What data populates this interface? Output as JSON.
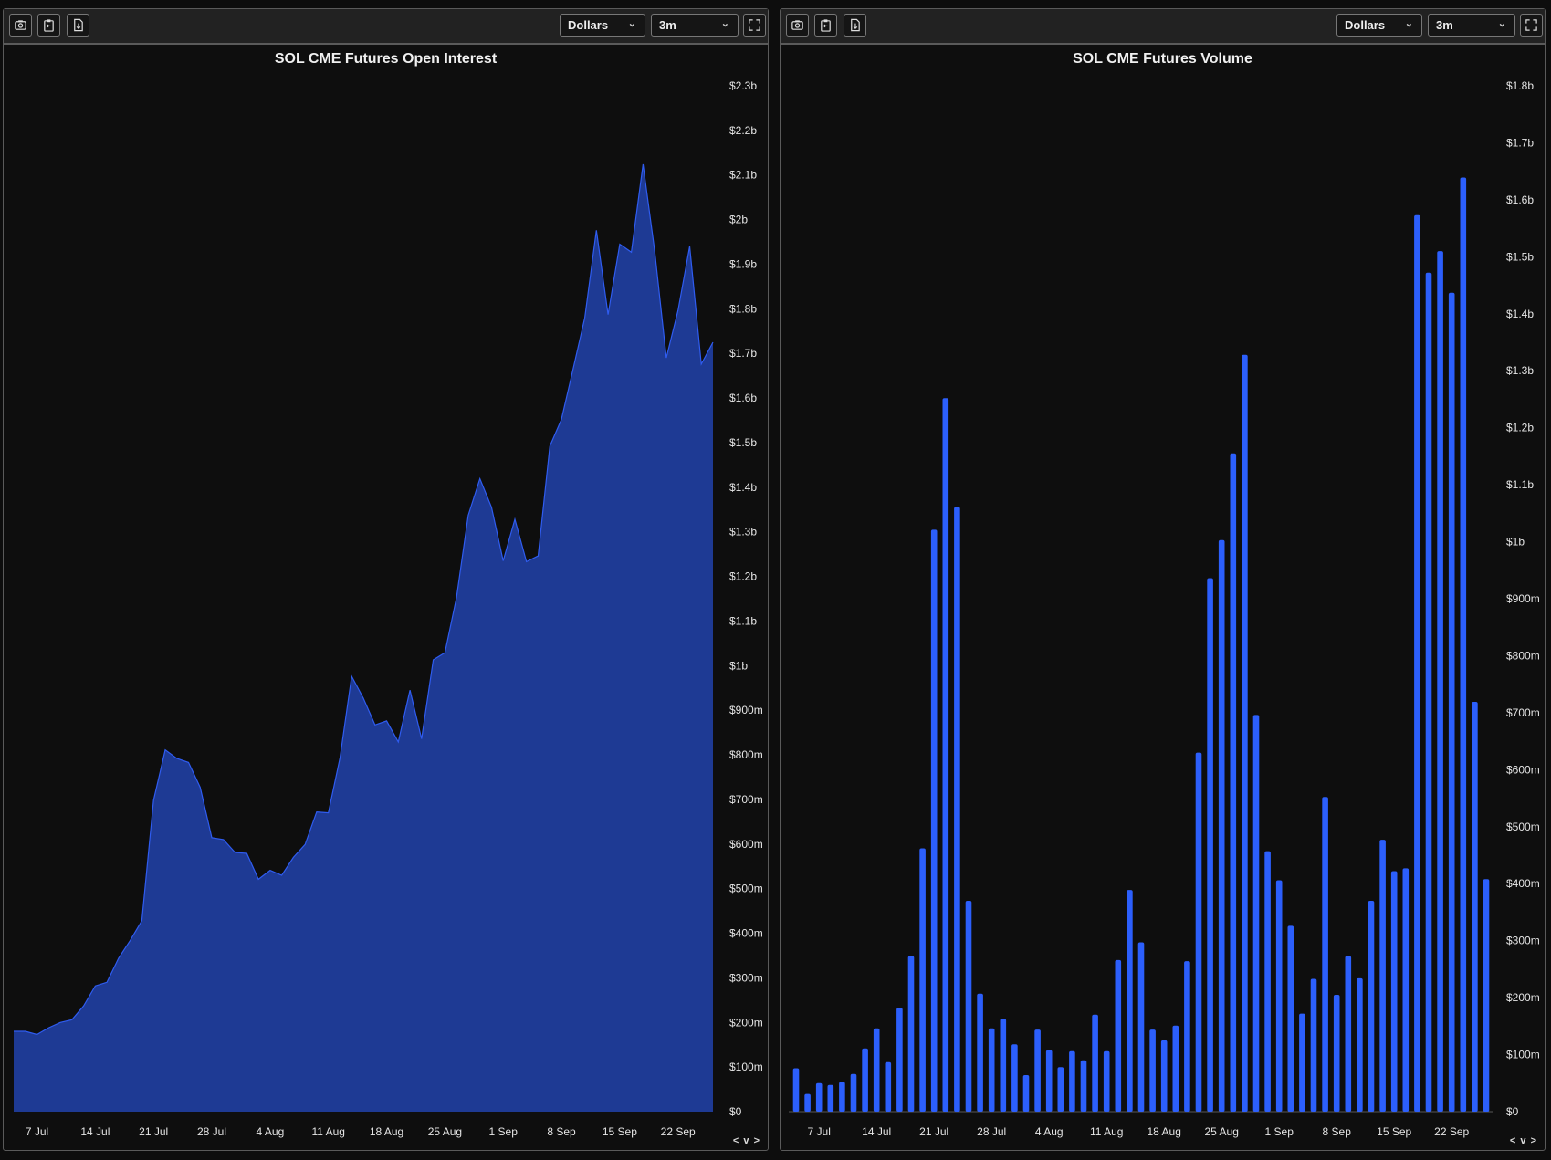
{
  "panels": [
    {
      "toolbar": {
        "icons": [
          "camera-icon",
          "clipboard-icon",
          "download-icon",
          "fullscreen-icon"
        ],
        "unit_select": "Dollars",
        "range_select": "3m"
      },
      "nav_label": "< v >"
    },
    {
      "toolbar": {
        "icons": [
          "camera-icon",
          "clipboard-icon",
          "download-icon",
          "fullscreen-icon"
        ],
        "unit_select": "Dollars",
        "range_select": "3m"
      },
      "nav_label": "< v >"
    }
  ],
  "chart_data": [
    {
      "type": "area",
      "title": "SOL CME Futures Open Interest",
      "xlabel": "",
      "ylabel": "",
      "unit": "USD millions",
      "ylim": [
        0,
        2300
      ],
      "y_ticks": [
        0,
        100,
        200,
        300,
        400,
        500,
        600,
        700,
        800,
        900,
        1000,
        1100,
        1200,
        1300,
        1400,
        1500,
        1600,
        1700,
        1800,
        1900,
        2000,
        2100,
        2200,
        2300
      ],
      "y_tick_labels": [
        "$0",
        "$100m",
        "$200m",
        "$300m",
        "$400m",
        "$500m",
        "$600m",
        "$700m",
        "$800m",
        "$900m",
        "$1b",
        "$1.1b",
        "$1.2b",
        "$1.3b",
        "$1.4b",
        "$1.5b",
        "$1.6b",
        "$1.7b",
        "$1.8b",
        "$1.9b",
        "$2b",
        "$2.1b",
        "$2.2b",
        "$2.3b"
      ],
      "x_ticks": [
        {
          "label": "7 Jul",
          "at": 2
        },
        {
          "label": "14 Jul",
          "at": 7
        },
        {
          "label": "21 Jul",
          "at": 12
        },
        {
          "label": "28 Jul",
          "at": 17
        },
        {
          "label": "4 Aug",
          "at": 22
        },
        {
          "label": "11 Aug",
          "at": 27
        },
        {
          "label": "18 Aug",
          "at": 32
        },
        {
          "label": "25 Aug",
          "at": 37
        },
        {
          "label": "1 Sep",
          "at": 42
        },
        {
          "label": "8 Sep",
          "at": 47
        },
        {
          "label": "15 Sep",
          "at": 52
        },
        {
          "label": "22 Sep",
          "at": 57
        }
      ],
      "values": [
        180,
        180,
        173,
        188,
        200,
        206,
        237,
        282,
        290,
        344,
        384,
        428,
        698,
        811,
        792,
        783,
        727,
        614,
        610,
        581,
        579,
        521,
        541,
        530,
        570,
        599,
        672,
        670,
        794,
        976,
        927,
        867,
        876,
        829,
        945,
        836,
        1013,
        1029,
        1153,
        1337,
        1419,
        1355,
        1235,
        1328,
        1233,
        1246,
        1492,
        1552,
        1665,
        1780,
        1976,
        1787,
        1945,
        1927,
        2124,
        1929,
        1690,
        1796,
        1940,
        1676,
        1725
      ],
      "colors": {
        "fill": "#1e3a94",
        "line": "#2f5cf0"
      },
      "grid": false
    },
    {
      "type": "bar",
      "title": "SOL CME Futures Volume",
      "xlabel": "",
      "ylabel": "",
      "unit": "USD millions",
      "ylim": [
        0,
        1800
      ],
      "y_ticks": [
        0,
        100,
        200,
        300,
        400,
        500,
        600,
        700,
        800,
        900,
        1000,
        1100,
        1200,
        1300,
        1400,
        1500,
        1600,
        1700,
        1800
      ],
      "y_tick_labels": [
        "$0",
        "$100m",
        "$200m",
        "$300m",
        "$400m",
        "$500m",
        "$600m",
        "$700m",
        "$800m",
        "$900m",
        "$1b",
        "$1.1b",
        "$1.2b",
        "$1.3b",
        "$1.4b",
        "$1.5b",
        "$1.6b",
        "$1.7b",
        "$1.8b"
      ],
      "x_ticks": [
        {
          "label": "7 Jul",
          "at": 2
        },
        {
          "label": "14 Jul",
          "at": 7
        },
        {
          "label": "21 Jul",
          "at": 12
        },
        {
          "label": "28 Jul",
          "at": 17
        },
        {
          "label": "4 Aug",
          "at": 22
        },
        {
          "label": "11 Aug",
          "at": 27
        },
        {
          "label": "18 Aug",
          "at": 32
        },
        {
          "label": "25 Aug",
          "at": 37
        },
        {
          "label": "1 Sep",
          "at": 42
        },
        {
          "label": "8 Sep",
          "at": 47
        },
        {
          "label": "15 Sep",
          "at": 52
        },
        {
          "label": "22 Sep",
          "at": 57
        }
      ],
      "values": [
        76,
        31,
        50,
        47,
        52,
        66,
        111,
        146,
        87,
        182,
        273,
        462,
        1021,
        1252,
        1061,
        370,
        207,
        146,
        163,
        118,
        64,
        144,
        108,
        78,
        106,
        90,
        170,
        106,
        266,
        389,
        297,
        144,
        125,
        151,
        264,
        630,
        936,
        1003,
        1155,
        1328,
        696,
        457,
        406,
        326,
        172,
        233,
        552,
        205,
        273,
        234,
        370,
        477,
        422,
        427,
        1573,
        1472,
        1510,
        1437,
        1639,
        719,
        408
      ],
      "colors": {
        "bar": "#2c5ffc"
      },
      "grid": false
    }
  ]
}
